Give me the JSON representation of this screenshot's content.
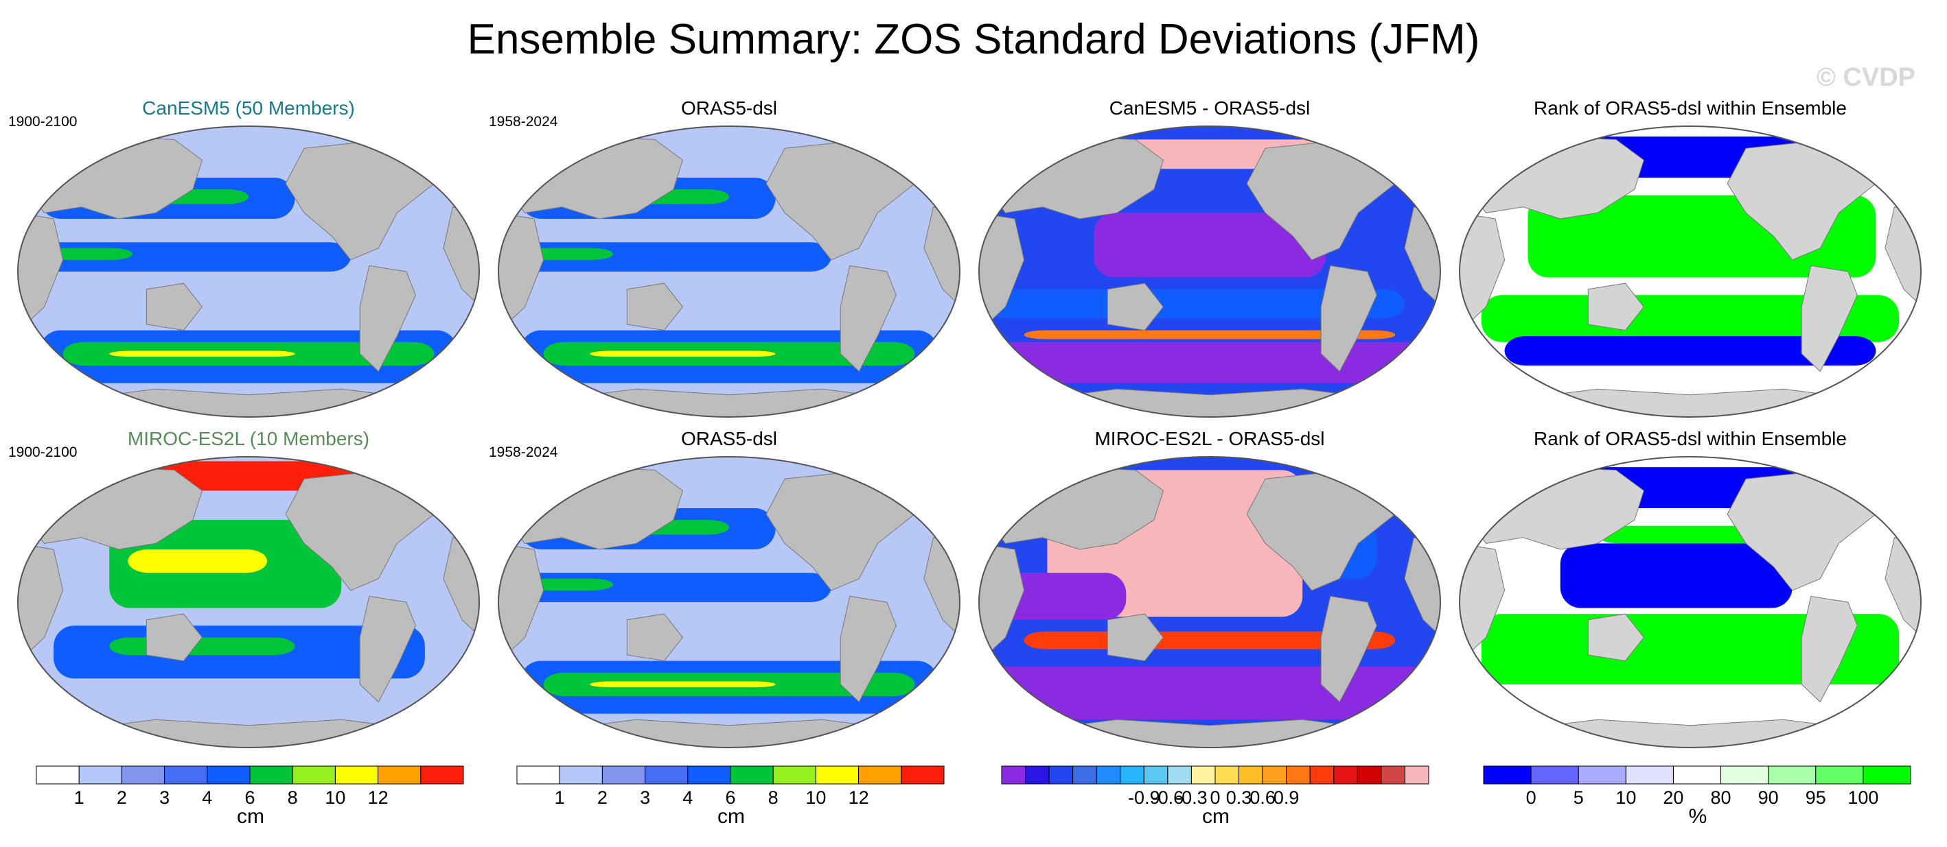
{
  "title": "Ensemble Summary: ZOS Standard Deviations (JFM)",
  "watermark": "© CVDP",
  "colors": {
    "ocean": "#b7c8f7",
    "land": "#bdbdbd",
    "landLight": "#d4d4d4",
    "mapGreen": "#00c43a",
    "mapBlue": "#0f5cff",
    "mapPurple": "#8a2be2",
    "mapPink": "#f7b6b9",
    "rankBlue": "#0000ff",
    "rankGreen": "#00ff00"
  },
  "panels": [
    {
      "title": "CanESM5 (50 Members)",
      "titleColor": "#1a7a8c",
      "date": "1900-2100",
      "type": "std"
    },
    {
      "title": "ORAS5-dsl",
      "titleColor": "#000000",
      "date": "1958-2024",
      "type": "std"
    },
    {
      "title": "CanESM5 - ORAS5-dsl",
      "titleColor": "#000000",
      "date": "",
      "type": "diff"
    },
    {
      "title": "Rank of ORAS5-dsl within Ensemble",
      "titleColor": "#000000",
      "date": "",
      "type": "rank"
    },
    {
      "title": "MIROC-ES2L (10 Members)",
      "titleColor": "#5a8a5a",
      "date": "1900-2100",
      "type": "std2"
    },
    {
      "title": "ORAS5-dsl",
      "titleColor": "#000000",
      "date": "1958-2024",
      "type": "std"
    },
    {
      "title": "MIROC-ES2L - ORAS5-dsl",
      "titleColor": "#000000",
      "date": "",
      "type": "diff2"
    },
    {
      "title": "Rank of ORAS5-dsl within Ensemble",
      "titleColor": "#000000",
      "date": "",
      "type": "rank2"
    }
  ],
  "colorbars": [
    {
      "unit": "cm",
      "colors": [
        "#ffffff",
        "#b4c8fa",
        "#8296f0",
        "#466ef5",
        "#0f5cff",
        "#00c43a",
        "#96f01e",
        "#ffff00",
        "#ffa000",
        "#ff1e0a"
      ],
      "ticks": [
        "1",
        "2",
        "3",
        "4",
        "6",
        "8",
        "10",
        "12"
      ]
    },
    {
      "unit": "cm",
      "colors": [
        "#ffffff",
        "#b4c8fa",
        "#8296f0",
        "#466ef5",
        "#0f5cff",
        "#00c43a",
        "#96f01e",
        "#ffff00",
        "#ffa000",
        "#ff1e0a"
      ],
      "ticks": [
        "1",
        "2",
        "3",
        "4",
        "6",
        "8",
        "10",
        "12"
      ]
    },
    {
      "unit": "cm",
      "colors": [
        "#8a2be2",
        "#2a14e6",
        "#2246f0",
        "#3c6ee6",
        "#1e8cff",
        "#28b4ff",
        "#5ac8f0",
        "#a0dcf0",
        "#fff5a0",
        "#ffdc50",
        "#ffbe28",
        "#ffa01e",
        "#ff7814",
        "#ff3c0a",
        "#e61414",
        "#d20000",
        "#d24646",
        "#f7b6b9"
      ],
      "ticks": [
        "-0.9",
        "-0.6",
        "-0.3",
        "0",
        "0.3",
        "0.6",
        "0.9"
      ]
    },
    {
      "unit": "%",
      "colors": [
        "#0000ff",
        "#6464ff",
        "#aaaaff",
        "#e1e1ff",
        "#ffffff",
        "#e1ffe1",
        "#aaffaa",
        "#64ff64",
        "#00ff00"
      ],
      "ticks": [
        "0",
        "5",
        "10",
        "20",
        "80",
        "90",
        "95",
        "100"
      ]
    }
  ]
}
